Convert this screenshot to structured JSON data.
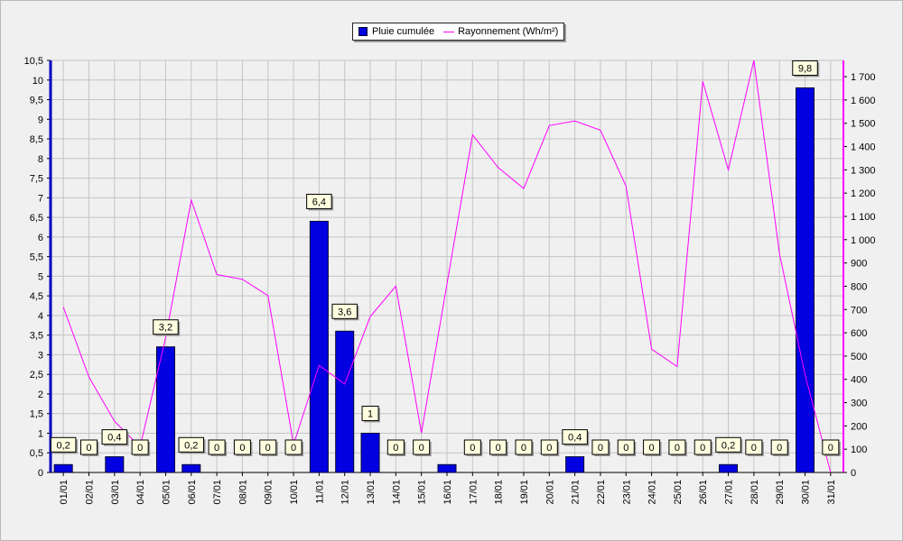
{
  "chart_data": {
    "type": "bar",
    "categories": [
      "01/01",
      "02/01",
      "03/01",
      "04/01",
      "05/01",
      "06/01",
      "07/01",
      "08/01",
      "09/01",
      "10/01",
      "11/01",
      "12/01",
      "13/01",
      "14/01",
      "15/01",
      "16/01",
      "17/01",
      "18/01",
      "19/01",
      "20/01",
      "21/01",
      "22/01",
      "23/01",
      "24/01",
      "25/01",
      "26/01",
      "27/01",
      "28/01",
      "29/01",
      "30/01",
      "31/01"
    ],
    "series": [
      {
        "name": "Pluie cumulée",
        "type": "bar",
        "axis": "left",
        "color": "#0000e0",
        "values": [
          0.2,
          0,
          0.4,
          0,
          3.2,
          0.2,
          0,
          0,
          0,
          0,
          6.4,
          3.6,
          1,
          0,
          0,
          0.2,
          0,
          0,
          0,
          0,
          0.4,
          0,
          0,
          0,
          0,
          0,
          0.2,
          0,
          0,
          9.8,
          0
        ],
        "labels": [
          "0,2",
          "0",
          "0,4",
          "0",
          "3,2",
          "0,2",
          "0",
          "0",
          "0",
          "0",
          "6,4",
          "3,6",
          "1",
          "0",
          "0",
          "",
          "0",
          "0",
          "0",
          "0",
          "0,4",
          "0",
          "0",
          "0",
          "0",
          "0",
          "0,2",
          "0",
          "0",
          "9,8",
          "0"
        ]
      },
      {
        "name": "Rayonnement (Wh/m²)",
        "type": "line",
        "axis": "right",
        "color": "#ff00ff",
        "values": [
          710,
          410,
          220,
          110,
          580,
          1170,
          850,
          830,
          760,
          120,
          460,
          380,
          670,
          800,
          170,
          810,
          1450,
          1310,
          1220,
          1490,
          1510,
          1470,
          1230,
          530,
          455,
          1680,
          1300,
          1770,
          940,
          420,
          0
        ]
      }
    ],
    "left_axis": {
      "min": 0,
      "max": 10.5,
      "ticks": [
        "0",
        "0,5",
        "1",
        "1,5",
        "2",
        "2,5",
        "3",
        "3,5",
        "4",
        "4,5",
        "5",
        "5,5",
        "6",
        "6,5",
        "7",
        "7,5",
        "8",
        "8,5",
        "9",
        "9,5",
        "10",
        "10,5"
      ]
    },
    "right_axis": {
      "min": 0,
      "max": 1770,
      "ticks": [
        "0",
        "100",
        "200",
        "300",
        "400",
        "500",
        "600",
        "700",
        "800",
        "900",
        "1 000",
        "1 100",
        "1 200",
        "1 300",
        "1 400",
        "1 500",
        "1 600",
        "1 700"
      ]
    },
    "grid": true,
    "legend": "top-center"
  }
}
